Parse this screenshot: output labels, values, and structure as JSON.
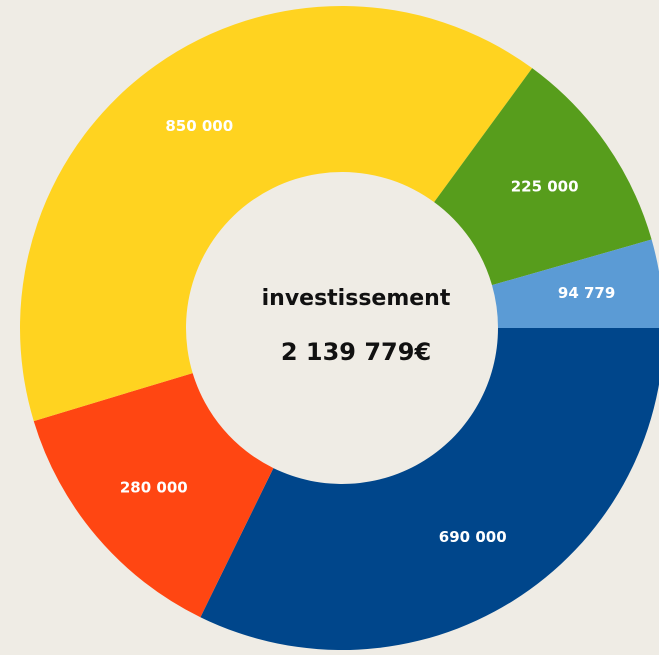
{
  "chart_data": {
    "type": "donut",
    "categories": [
      null,
      null,
      null,
      null,
      null
    ],
    "values": [
      690000,
      280000,
      850000,
      225000,
      94779
    ],
    "value_labels": [
      "690 000",
      "280 000",
      "850 000",
      "225 000",
      "94 779"
    ],
    "colors": [
      "#00468b",
      "#ff4612",
      "#ffd320",
      "#579d1c",
      "#5b9bd5"
    ],
    "center_title": "investissement",
    "center_value": "2 139 779€"
  }
}
